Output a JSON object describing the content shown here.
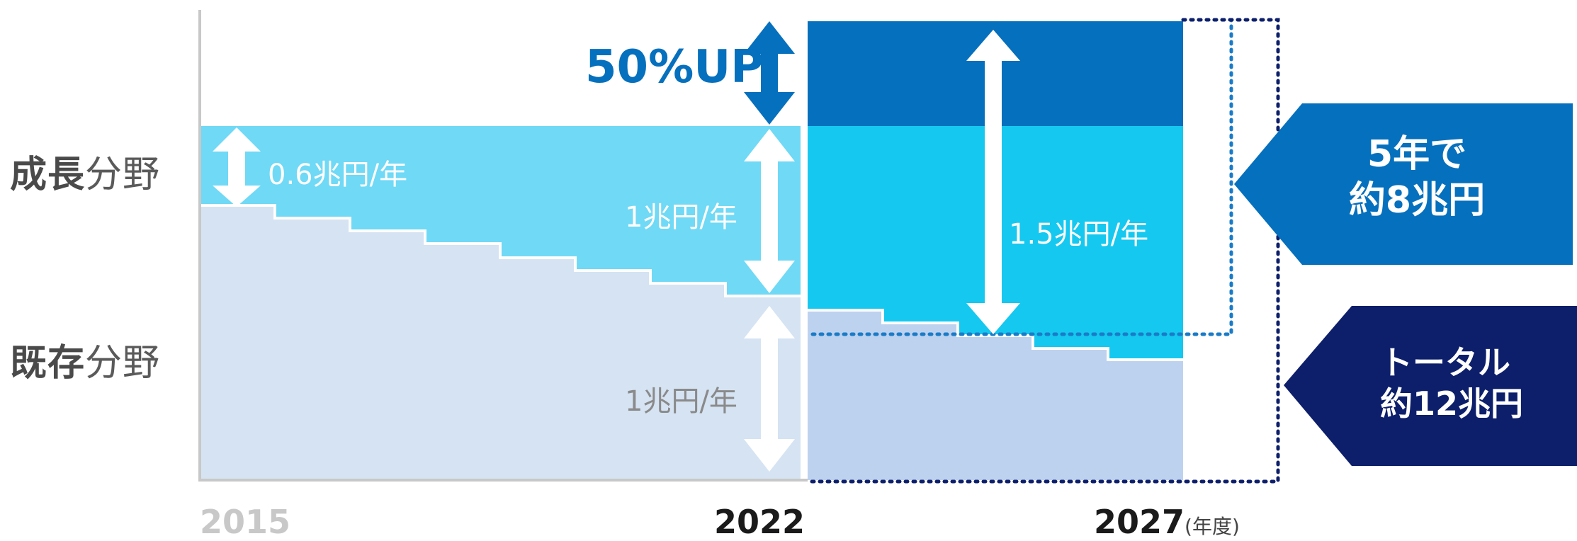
{
  "rows": {
    "growth": {
      "bold": "成長",
      "rest": "分野"
    },
    "existing": {
      "bold": "既存",
      "rest": "分野"
    }
  },
  "annotations": {
    "growth_start": "0.6兆円/年",
    "growth_2022": "1兆円/年",
    "existing_2022": "1兆円/年",
    "growth_2027": "1.5兆円/年",
    "increase": "50%UP"
  },
  "years": {
    "y2015": "2015",
    "y2022": "2022",
    "y2027": "2027",
    "unit": "(年度)"
  },
  "callouts": {
    "five_year": {
      "line1": "5年で",
      "line2": "約8兆円"
    },
    "total": {
      "line1": "トータル",
      "line2": "約12兆円"
    }
  },
  "colors": {
    "growth_fill": "#6fd9f6",
    "growth_future_fill": "#15c8f0",
    "existing_fill": "#d5e3f3",
    "existing_future_fill": "#bdd2ee",
    "increase_fill": "#0570bd",
    "five_year_callout": "#0570bd",
    "total_callout": "#0d1f6b",
    "year_2015": "#c8c8c8",
    "year_active": "#1a1a1a"
  }
}
